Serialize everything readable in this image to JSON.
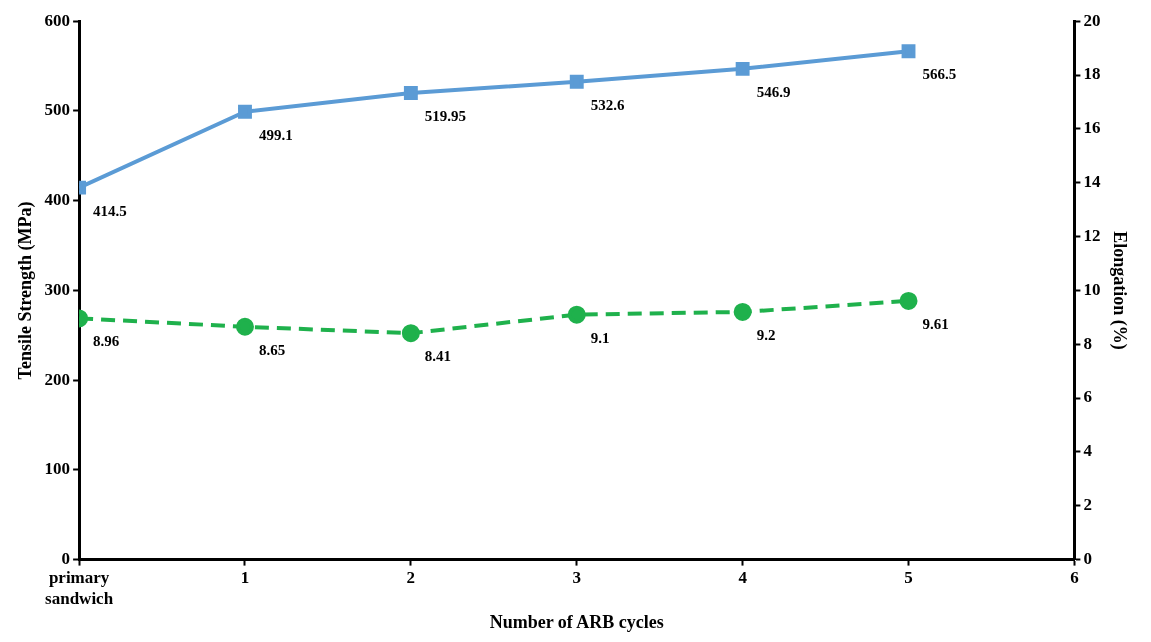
{
  "chart_data": {
    "type": "line",
    "xlabel": "Number of ARB cycles",
    "ylabel": "Tensile Strength (MPa)",
    "y2label": "Elongation (%)",
    "x": [
      0,
      1,
      2,
      3,
      4,
      5
    ],
    "xlim": [
      0,
      6
    ],
    "xticks": [
      {
        "value": 0,
        "label": "primary sandwich"
      },
      1,
      2,
      3,
      4,
      5,
      6
    ],
    "ylim": [
      0,
      600
    ],
    "yticks": [
      0,
      100,
      200,
      300,
      400,
      500,
      600
    ],
    "y2lim": [
      0,
      20
    ],
    "y2ticks": [
      0,
      2,
      4,
      6,
      8,
      10,
      12,
      14,
      16,
      18,
      20
    ],
    "series": [
      {
        "color": "#5b9bd5",
        "values": [
          414.5,
          499.1,
          519.95,
          532.6,
          546.9,
          566.5
        ],
        "marker": "square",
        "line_style": "solid"
      },
      {
        "color": "#1fb14c",
        "values": [
          8.96,
          8.65,
          8.41,
          9.1,
          9.2,
          9.61
        ],
        "axis": "y2",
        "marker": "circle",
        "line_style": "dashed"
      }
    ],
    "data_labels": true,
    "grid": false,
    "legend": false
  }
}
